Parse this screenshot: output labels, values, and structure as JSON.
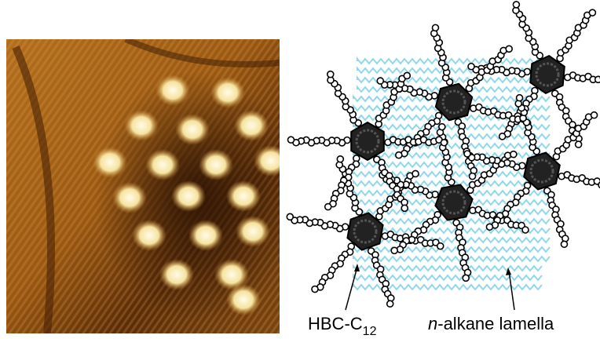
{
  "labels": [
    {
      "main": "HBC-C",
      "subscript": "12"
    },
    {
      "italic": "n",
      "rest": "-alkane lamella"
    }
  ]
}
